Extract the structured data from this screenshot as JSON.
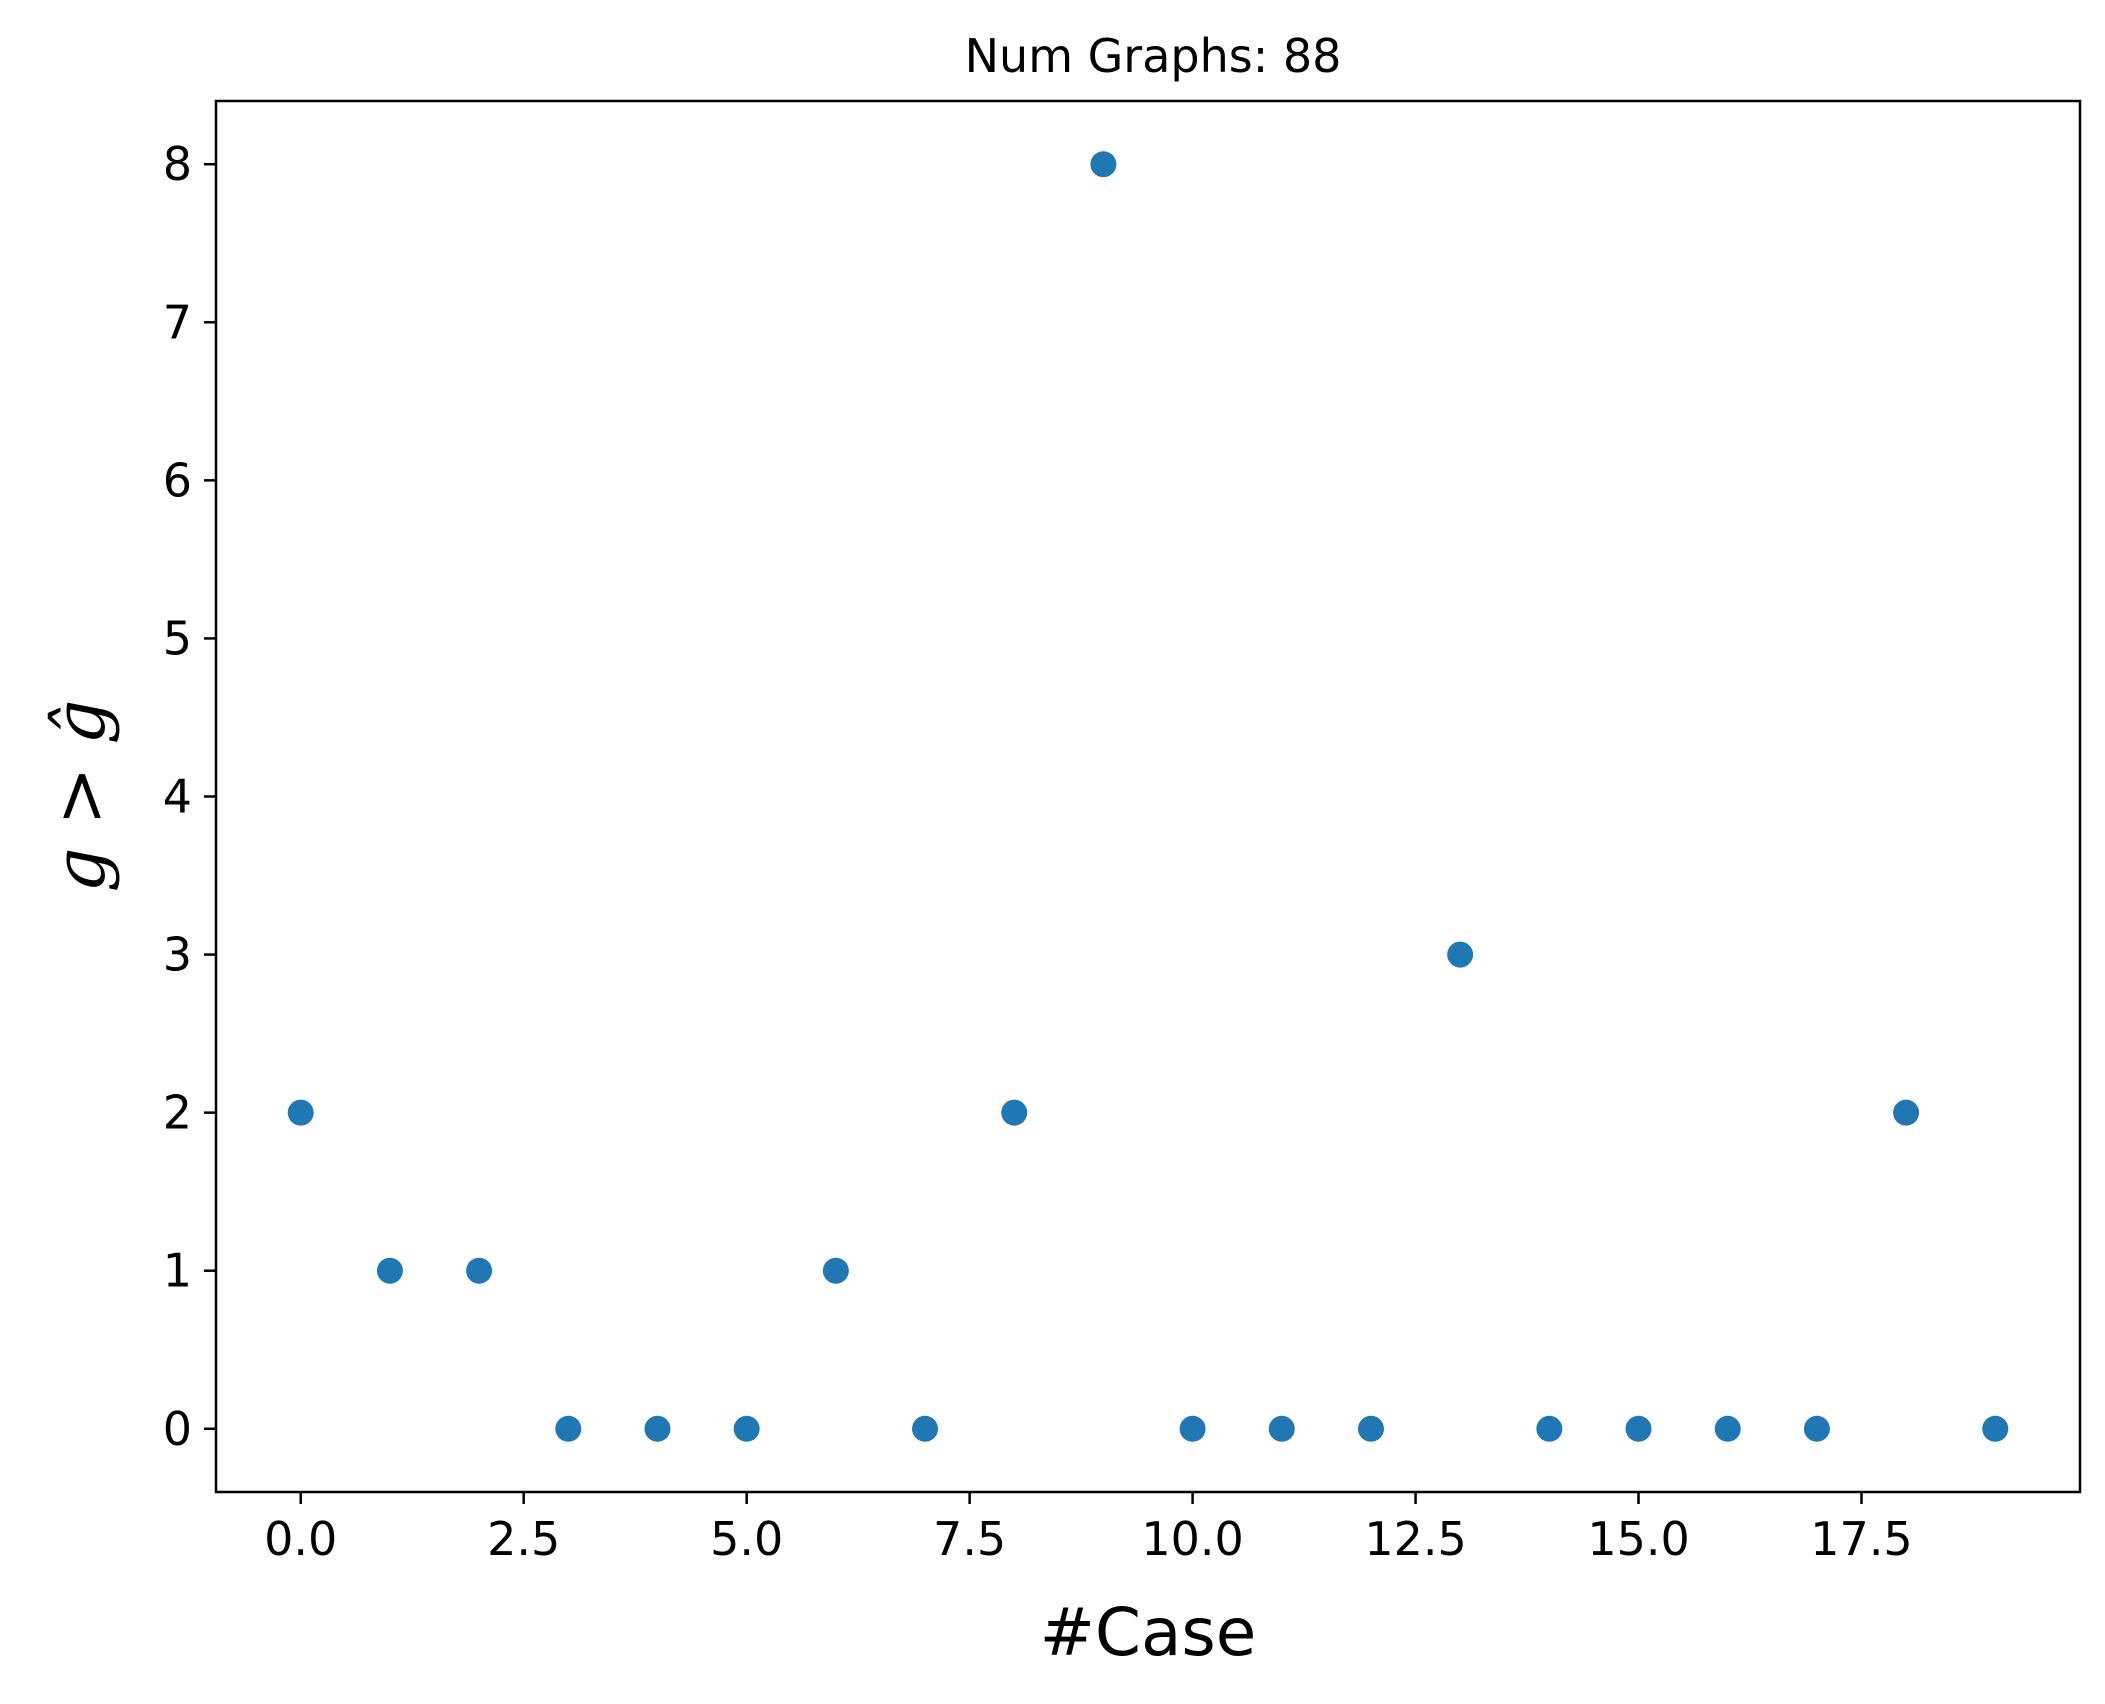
{
  "chart_data": {
    "type": "scatter",
    "title": "Num Graphs: 88",
    "xlabel": "#Case",
    "ylabel": "g > ĝ",
    "xlim": [
      -0.95,
      19.95
    ],
    "ylim": [
      -0.4,
      8.4
    ],
    "xticks": [
      0.0,
      2.5,
      5.0,
      7.5,
      10.0,
      12.5,
      15.0,
      17.5
    ],
    "xtick_labels": [
      "0.0",
      "2.5",
      "5.0",
      "7.5",
      "10.0",
      "12.5",
      "15.0",
      "17.5"
    ],
    "yticks": [
      0,
      1,
      2,
      3,
      4,
      5,
      6,
      7,
      8
    ],
    "ytick_labels": [
      "0",
      "1",
      "2",
      "3",
      "4",
      "5",
      "6",
      "7",
      "8"
    ],
    "grid": false,
    "color": "#1f77b4",
    "x": [
      0,
      1,
      2,
      3,
      4,
      5,
      6,
      7,
      8,
      9,
      10,
      11,
      12,
      13,
      14,
      15,
      16,
      17,
      18,
      19
    ],
    "y": [
      2,
      1,
      1,
      0,
      0,
      0,
      1,
      0,
      2,
      8,
      0,
      0,
      0,
      3,
      0,
      0,
      0,
      0,
      2,
      0
    ]
  }
}
